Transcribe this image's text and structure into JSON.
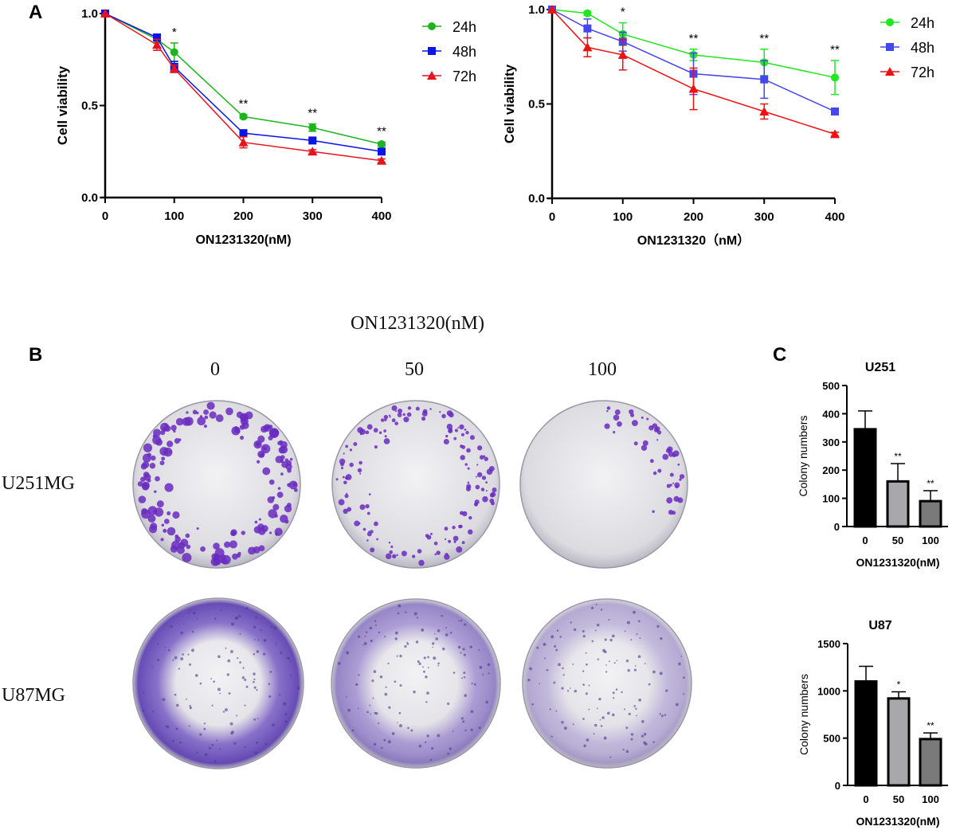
{
  "panel_labels": {
    "a": "A",
    "b": "B",
    "c": "C"
  },
  "panel_b": {
    "header": "ON1231320(nM)",
    "columns": [
      "0",
      "50",
      "100"
    ],
    "rows": [
      "U251MG",
      "U87MG"
    ]
  },
  "chart_data": [
    {
      "type": "line",
      "xlabel": "ON1231320(nM)",
      "ylabel": "Cell viability",
      "xlim": [
        0,
        400
      ],
      "ylim": [
        0,
        1.0
      ],
      "xticks": [
        "0",
        "100",
        "200",
        "300",
        "400"
      ],
      "yticks": [
        "0.0",
        "0.5",
        "1.0"
      ],
      "x": [
        0,
        75,
        100,
        200,
        300,
        400
      ],
      "legend_position": "right",
      "significance": [
        {
          "x": 100,
          "label": "*"
        },
        {
          "x": 200,
          "label": "**"
        },
        {
          "x": 300,
          "label": "**"
        },
        {
          "x": 400,
          "label": "**"
        }
      ],
      "series": [
        {
          "name": "24h",
          "color": "#1db41d",
          "marker": "circle",
          "values": [
            1.0,
            0.86,
            0.79,
            0.44,
            0.38,
            0.29
          ],
          "errors": [
            0,
            0.02,
            0.05,
            0.01,
            0.02,
            0.01
          ]
        },
        {
          "name": "48h",
          "color": "#0a14e6",
          "marker": "square",
          "values": [
            1.0,
            0.87,
            0.71,
            0.35,
            0.31,
            0.25
          ],
          "errors": [
            0,
            0.01,
            0.03,
            0.01,
            0.01,
            0.01
          ]
        },
        {
          "name": "72h",
          "color": "#e6141e",
          "marker": "triangle",
          "values": [
            1.0,
            0.83,
            0.7,
            0.3,
            0.25,
            0.2
          ],
          "errors": [
            0,
            0.03,
            0.02,
            0.03,
            0.01,
            0.01
          ]
        }
      ]
    },
    {
      "type": "line",
      "xlabel": "ON1231320（nM）",
      "ylabel": "Cell viability",
      "xlim": [
        0,
        400
      ],
      "ylim": [
        0,
        1.0
      ],
      "xticks": [
        "0",
        "100",
        "200",
        "300",
        "400"
      ],
      "yticks": [
        "0.0",
        "0.5",
        "1.0"
      ],
      "x": [
        0,
        50,
        100,
        200,
        300,
        400
      ],
      "legend_position": "right",
      "significance": [
        {
          "x": 100,
          "label": "*"
        },
        {
          "x": 200,
          "label": "**"
        },
        {
          "x": 300,
          "label": "**"
        },
        {
          "x": 400,
          "label": "**"
        }
      ],
      "series": [
        {
          "name": "24h",
          "color": "#22e622",
          "marker": "circle",
          "values": [
            1.0,
            0.98,
            0.87,
            0.76,
            0.72,
            0.64
          ],
          "errors": [
            0,
            0.01,
            0.06,
            0.03,
            0.07,
            0.09
          ]
        },
        {
          "name": "48h",
          "color": "#4646ee",
          "marker": "square",
          "values": [
            1.0,
            0.9,
            0.83,
            0.66,
            0.63,
            0.46
          ],
          "errors": [
            0,
            0.05,
            0.05,
            0.11,
            0.1,
            0.01
          ]
        },
        {
          "name": "72h",
          "color": "#ee1111",
          "marker": "triangle",
          "values": [
            1.0,
            0.8,
            0.76,
            0.58,
            0.46,
            0.34
          ],
          "errors": [
            0,
            0.05,
            0.08,
            0.11,
            0.04,
            0.01
          ]
        }
      ]
    },
    {
      "type": "bar",
      "title": "U251",
      "xlabel": "ON1231320(nM)",
      "ylabel": "Colony numbers",
      "categories": [
        "0",
        "50",
        "100"
      ],
      "values": [
        345,
        160,
        90
      ],
      "errors": [
        65,
        63,
        37
      ],
      "significance": [
        "",
        "**",
        "**"
      ],
      "colors": [
        "#000000",
        "#a8a8ac",
        "#7a7a7a"
      ],
      "ylim": [
        0,
        500
      ],
      "yticks": [
        "0",
        "100",
        "200",
        "300",
        "400",
        "500"
      ]
    },
    {
      "type": "bar",
      "title": "U87",
      "xlabel": "ON1231320(nM)",
      "ylabel": "Colony numbers",
      "categories": [
        "0",
        "50",
        "100"
      ],
      "values": [
        1100,
        920,
        490
      ],
      "errors": [
        160,
        70,
        65
      ],
      "significance": [
        "",
        "*",
        "**"
      ],
      "colors": [
        "#000000",
        "#a8a8ac",
        "#7a7a7a"
      ],
      "ylim": [
        0,
        1500
      ],
      "yticks": [
        "0",
        "500",
        "1000",
        "1500"
      ]
    }
  ]
}
